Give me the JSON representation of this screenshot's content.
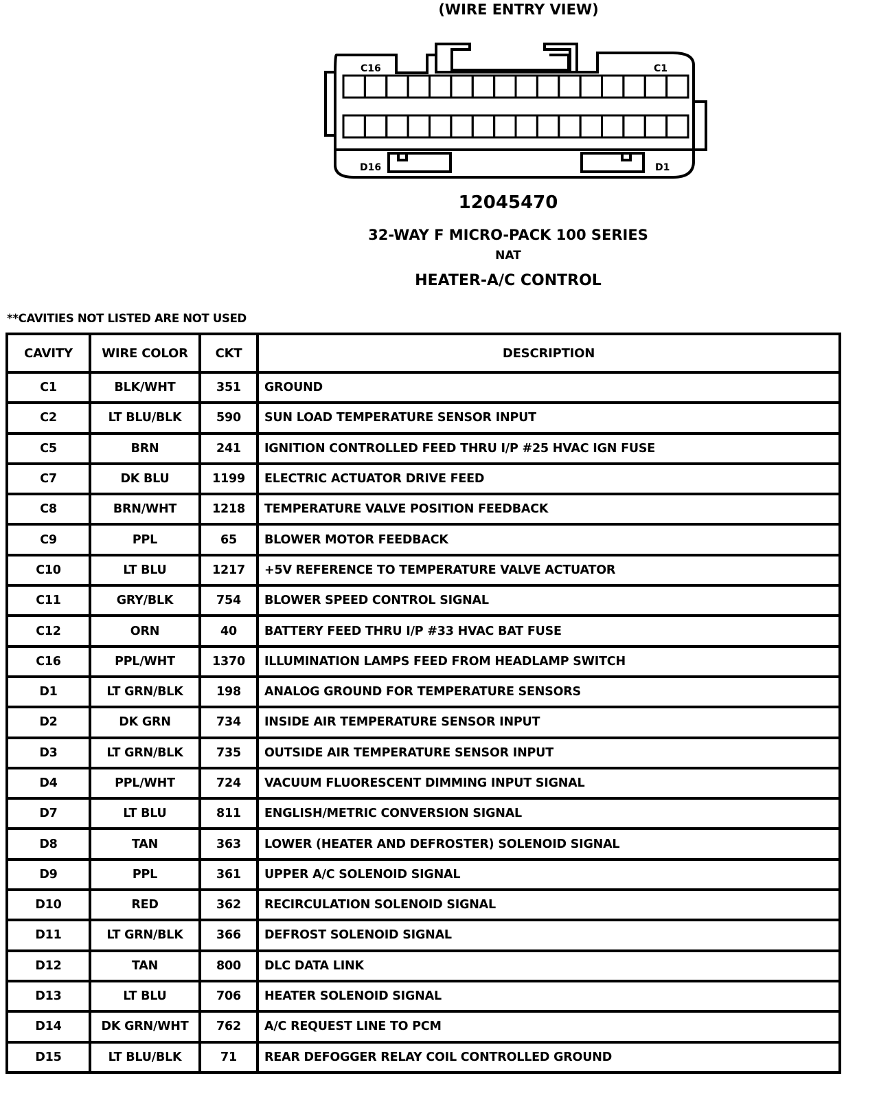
{
  "header": {
    "view_label": "(WIRE ENTRY VIEW)",
    "part_number": "12045470",
    "series": "32-WAY F MICRO-PACK 100 SERIES",
    "color": "NAT",
    "component": "HEATER-A/C CONTROL"
  },
  "connector": {
    "label_c16": "C16",
    "label_c1": "C1",
    "label_d16": "D16",
    "label_d1": "D1",
    "cavities_per_row": 16
  },
  "note": "**CAVITIES NOT LISTED ARE NOT USED",
  "table": {
    "headers": [
      "CAVITY",
      "WIRE COLOR",
      "CKT",
      "DESCRIPTION"
    ],
    "rows": [
      [
        "C1",
        "BLK/WHT",
        "351",
        "GROUND"
      ],
      [
        "C2",
        "LT BLU/BLK",
        "590",
        "SUN LOAD TEMPERATURE SENSOR INPUT"
      ],
      [
        "C5",
        "BRN",
        "241",
        "IGNITION CONTROLLED FEED THRU I/P #25 HVAC IGN FUSE"
      ],
      [
        "C7",
        "DK BLU",
        "1199",
        "ELECTRIC ACTUATOR DRIVE FEED"
      ],
      [
        "C8",
        "BRN/WHT",
        "1218",
        "TEMPERATURE VALVE POSITION FEEDBACK"
      ],
      [
        "C9",
        "PPL",
        "65",
        "BLOWER MOTOR FEEDBACK"
      ],
      [
        "C10",
        "LT BLU",
        "1217",
        "+5V REFERENCE TO TEMPERATURE VALVE ACTUATOR"
      ],
      [
        "C11",
        "GRY/BLK",
        "754",
        "BLOWER SPEED CONTROL SIGNAL"
      ],
      [
        "C12",
        "ORN",
        "40",
        "BATTERY FEED THRU I/P #33 HVAC BAT FUSE"
      ],
      [
        "C16",
        "PPL/WHT",
        "1370",
        "ILLUMINATION LAMPS FEED FROM HEADLAMP SWITCH"
      ],
      [
        "D1",
        "LT GRN/BLK",
        "198",
        "ANALOG GROUND FOR TEMPERATURE SENSORS"
      ],
      [
        "D2",
        "DK GRN",
        "734",
        "INSIDE AIR TEMPERATURE SENSOR INPUT"
      ],
      [
        "D3",
        "LT GRN/BLK",
        "735",
        "OUTSIDE AIR TEMPERATURE SENSOR INPUT"
      ],
      [
        "D4",
        "PPL/WHT",
        "724",
        "VACUUM FLUORESCENT DIMMING INPUT SIGNAL"
      ],
      [
        "D7",
        "LT BLU",
        "811",
        "ENGLISH/METRIC CONVERSION SIGNAL"
      ],
      [
        "D8",
        "TAN",
        "363",
        "LOWER (HEATER AND DEFROSTER) SOLENOID SIGNAL"
      ],
      [
        "D9",
        "PPL",
        "361",
        "UPPER A/C SOLENOID SIGNAL"
      ],
      [
        "D10",
        "RED",
        "362",
        "RECIRCULATION SOLENOID SIGNAL"
      ],
      [
        "D11",
        "LT GRN/BLK",
        "366",
        "DEFROST SOLENOID SIGNAL"
      ],
      [
        "D12",
        "TAN",
        "800",
        "DLC DATA LINK"
      ],
      [
        "D13",
        "LT BLU",
        "706",
        "HEATER SOLENOID SIGNAL"
      ],
      [
        "D14",
        "DK GRN/WHT",
        "762",
        "A/C REQUEST LINE TO PCM"
      ],
      [
        "D15",
        "LT BLU/BLK",
        "71",
        "REAR DEFOGGER RELAY COIL CONTROLLED GROUND"
      ]
    ]
  }
}
